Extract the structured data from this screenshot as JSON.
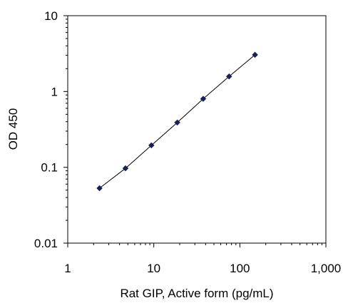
{
  "chart_data": {
    "type": "scatter",
    "title": "",
    "xlabel": "Rat GIP, Active form (pg/mL)",
    "ylabel": "OD 450",
    "x_scale": "log",
    "y_scale": "log",
    "xlim": [
      1,
      1000
    ],
    "ylim": [
      0.01,
      10
    ],
    "grid": false,
    "legend": "none",
    "x_ticks": [
      {
        "value": 1,
        "label": "1"
      },
      {
        "value": 10,
        "label": "10"
      },
      {
        "value": 100,
        "label": "100"
      },
      {
        "value": 1000,
        "label": "1,000"
      }
    ],
    "y_ticks": [
      {
        "value": 10,
        "label": "10"
      },
      {
        "value": 1,
        "label": "1"
      },
      {
        "value": 0.1,
        "label": "0.1"
      },
      {
        "value": 0.01,
        "label": "0.01"
      }
    ],
    "series": [
      {
        "x": [
          2.34,
          4.69,
          9.38,
          18.75,
          37.5,
          75,
          150
        ],
        "y": [
          0.053,
          0.097,
          0.195,
          0.39,
          0.8,
          1.58,
          3.05
        ],
        "marker": "diamond",
        "color": "#1a1f5c",
        "line": true,
        "line_color": "#000000"
      }
    ]
  }
}
